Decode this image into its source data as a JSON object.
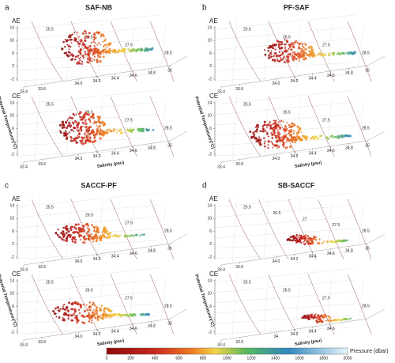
{
  "panels": [
    {
      "letter": "a",
      "title": "SAF-NB",
      "plots": [
        {
          "label": "AE",
          "salinity_ticks": [
            33.4,
            33.6,
            {
              "value": 34,
              "label": "34.0"
            },
            34.2,
            34.4,
            34.6,
            34.8,
            35
          ],
          "temperature_ticks": [
            14,
            10,
            6,
            2,
            -2
          ],
          "density_labels": [
            25.5,
            26.5,
            27.5,
            28.5
          ]
        },
        {
          "label": "CE",
          "salinity_ticks": [
            33.4,
            33.6,
            {
              "value": 34,
              "label": "34.0"
            },
            34.2,
            34.4,
            34.6,
            34.8,
            35
          ],
          "temperature_ticks": [
            14,
            10,
            6,
            2,
            -2
          ],
          "density_labels": [
            25.5,
            26.5,
            27.5,
            28.5
          ]
        }
      ]
    },
    {
      "letter": "b",
      "title": "PF-SAF",
      "plots": [
        {
          "label": "AE",
          "salinity_ticks": [
            33.4,
            33.6,
            {
              "value": 34,
              "label": "34.0"
            },
            34.2,
            34.4,
            34.6,
            34.8,
            35
          ],
          "temperature_ticks": [
            14,
            10,
            6,
            2,
            -2
          ],
          "density_labels": [
            25.5,
            26.5,
            27.5,
            28.5
          ]
        },
        {
          "label": "CE",
          "salinity_ticks": [
            33.4,
            33.6,
            {
              "value": 34,
              "label": "34.0"
            },
            34.2,
            34.4,
            34.6,
            34.8,
            35
          ],
          "temperature_ticks": [
            14,
            10,
            6,
            2,
            -2
          ],
          "density_labels": [
            25.5,
            26.5,
            27.5,
            28.5
          ]
        }
      ]
    },
    {
      "letter": "c",
      "title": "SACCF-PF",
      "plots": [
        {
          "label": "AE",
          "salinity_ticks": [
            33.4,
            33.6,
            {
              "value": 34,
              "label": "34.0"
            },
            34.2,
            34.4,
            34.6,
            34.8,
            35
          ],
          "temperature_ticks": [
            14,
            10,
            6,
            2,
            -2
          ],
          "density_labels": [
            25.5,
            26.5,
            27.5,
            28.5
          ]
        },
        {
          "label": "CE",
          "salinity_ticks": [
            33.4,
            33.6,
            {
              "value": 34,
              "label": "34.0"
            },
            34.2,
            34.4,
            34.6,
            34.8,
            35
          ],
          "temperature_ticks": [
            14,
            10,
            6,
            2,
            -2
          ],
          "density_labels": [
            25.5,
            26.5,
            27.5,
            28.5
          ]
        }
      ]
    },
    {
      "letter": "d",
      "title": "SB-SACCF",
      "plots": [
        {
          "label": "AE",
          "salinity_ticks": [
            33.4,
            33.6,
            {
              "value": 34,
              "label": "34.0"
            },
            34.2,
            34.4,
            34.6,
            34.8,
            35
          ],
          "temperature_ticks": [
            14,
            10,
            6,
            2,
            -2
          ],
          "density_labels": [
            25.5,
            26.5,
            27.0,
            27.5,
            28.5
          ]
        },
        {
          "label": "CE",
          "salinity_ticks": [
            33.4,
            33.6,
            34,
            34.2,
            34.4,
            34.6
          ],
          "temperature_ticks": [
            14,
            10,
            6,
            2,
            -2
          ],
          "density_labels": [
            25.5,
            26.5,
            27.5,
            28.5
          ]
        }
      ]
    }
  ],
  "x_axis_label": "Salinity (psu)",
  "y_axis_label": "Potential Temperature (°C)",
  "colorbar": {
    "label": "Pressure (dbar)",
    "ticks": [
      0,
      200,
      400,
      600,
      800,
      1000,
      1200,
      1400,
      1600,
      1800,
      2000
    ],
    "lim": [
      0,
      2000
    ]
  }
}
